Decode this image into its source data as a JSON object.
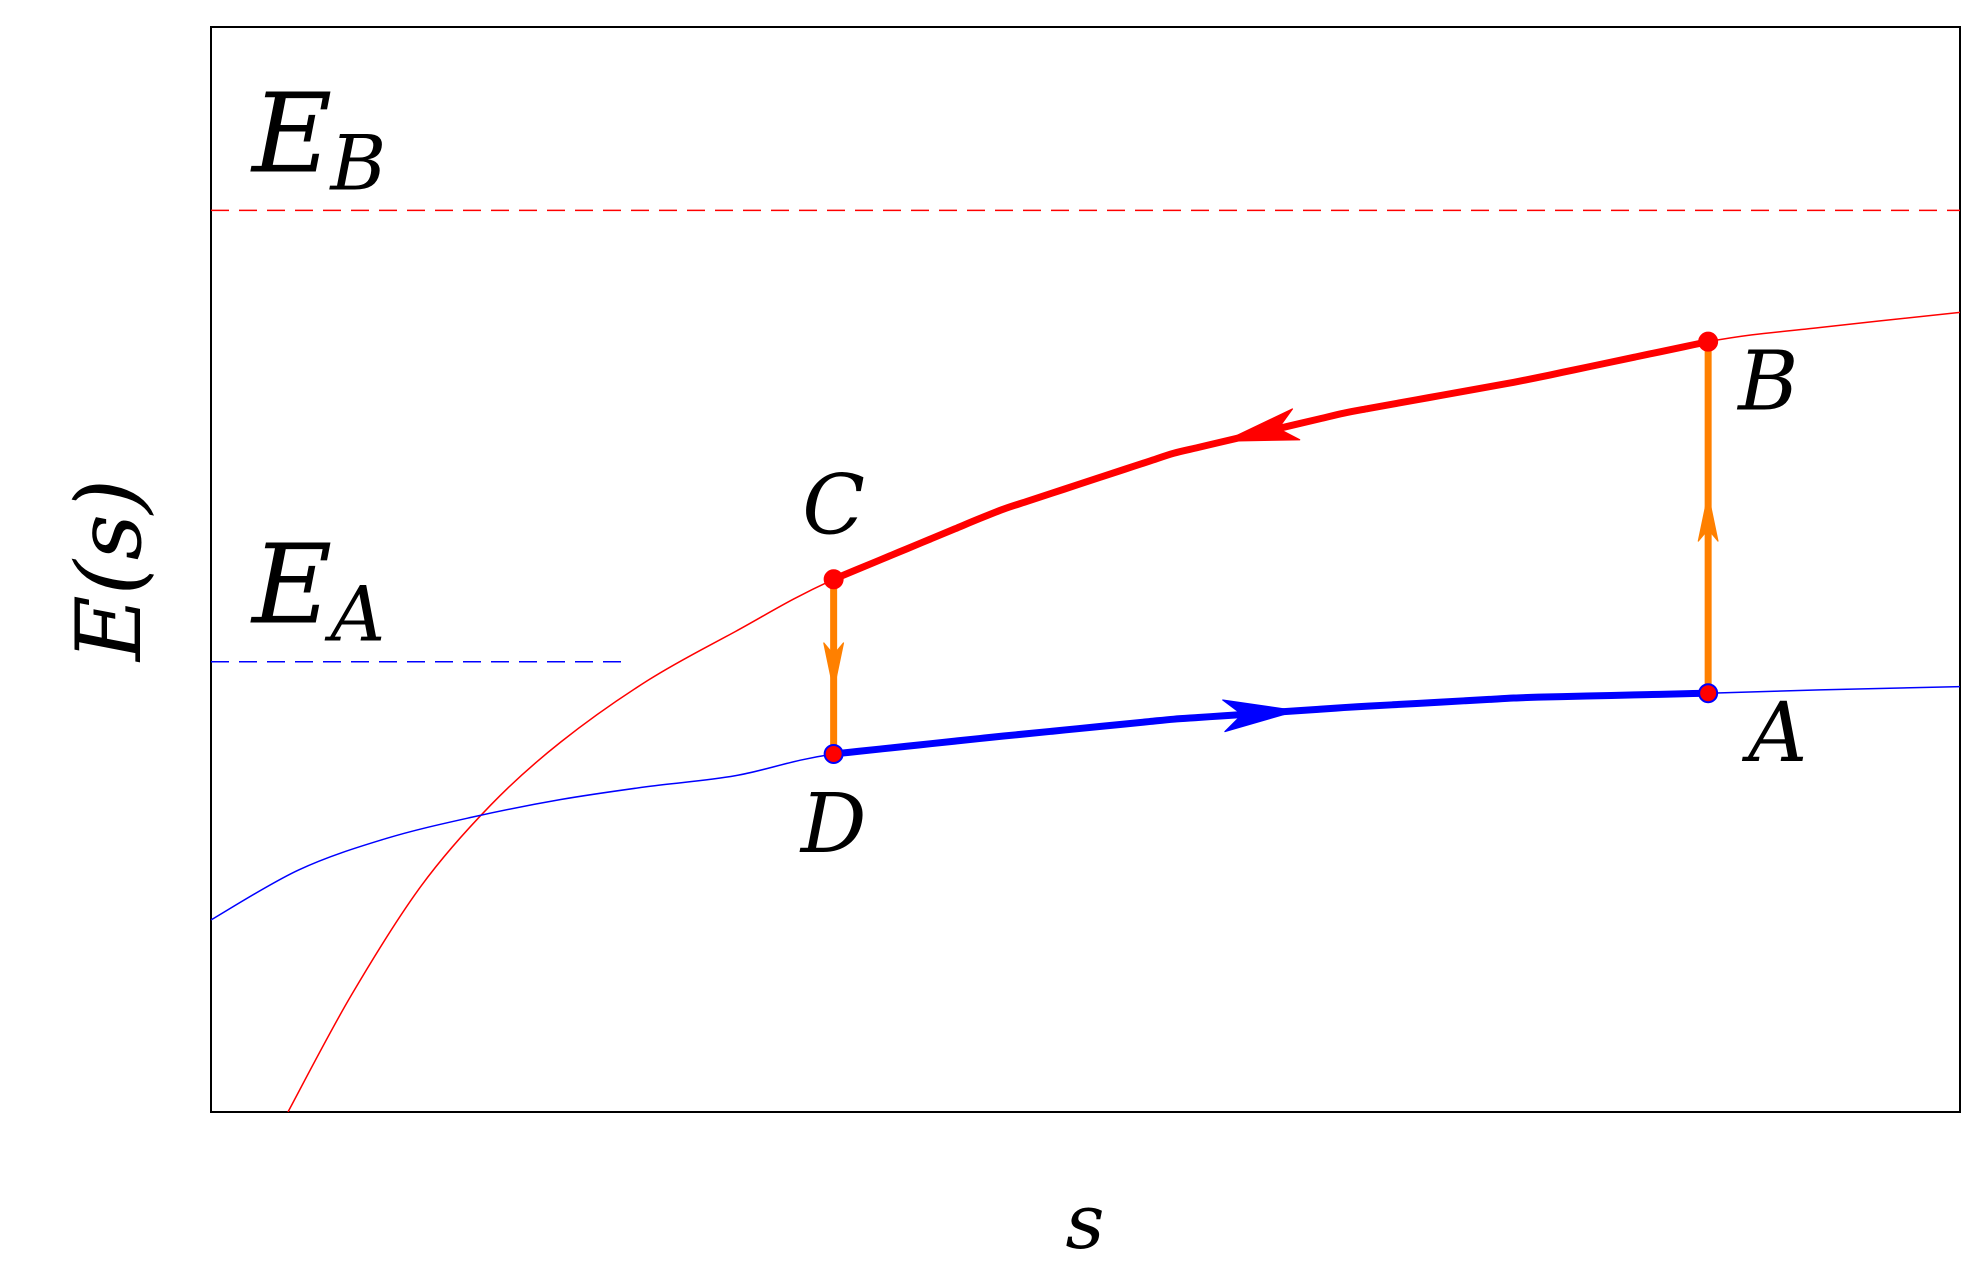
{
  "chart_data": {
    "type": "line",
    "title": "",
    "xlabel": "s",
    "ylabel": "E(s)",
    "xlim": [
      0,
      1
    ],
    "ylim": [
      0,
      1
    ],
    "grid": false,
    "legend": "none",
    "series": [
      {
        "name": "",
        "color": "#ff0000",
        "x": [
          0.044,
          0.08,
          0.12,
          0.16,
          0.2,
          0.25,
          0.3,
          0.356,
          0.45,
          0.55,
          0.65,
          0.75,
          0.856,
          0.92,
          1.0
        ],
        "y": [
          0.0,
          0.107,
          0.208,
          0.283,
          0.341,
          0.398,
          0.443,
          0.491,
          0.554,
          0.607,
          0.645,
          0.674,
          0.71,
          0.723,
          0.737
        ]
      },
      {
        "name": "",
        "color": "#0000ff",
        "x": [
          0.0,
          0.05,
          0.1,
          0.15,
          0.2,
          0.25,
          0.3,
          0.356,
          0.45,
          0.55,
          0.65,
          0.75,
          0.856,
          0.92,
          1.0
        ],
        "y": [
          0.177,
          0.223,
          0.252,
          0.272,
          0.288,
          0.3,
          0.31,
          0.33,
          0.346,
          0.362,
          0.373,
          0.382,
          0.386,
          0.389,
          0.392
        ]
      }
    ],
    "hlines": [
      {
        "label_base": "E",
        "label_sub": "B",
        "y": 0.831,
        "color": "#ff0000",
        "dashed": true,
        "x": [
          0,
          1
        ]
      },
      {
        "label_base": "E",
        "label_sub": "A",
        "y": 0.415,
        "color": "#0000ff",
        "dashed": true,
        "x": [
          0,
          0.239
        ]
      }
    ],
    "cycle": {
      "points": [
        {
          "name": "A",
          "x": 0.856,
          "y": 0.386
        },
        {
          "name": "B",
          "x": 0.856,
          "y": 0.71
        },
        {
          "name": "C",
          "x": 0.356,
          "y": 0.491
        },
        {
          "name": "D",
          "x": 0.356,
          "y": 0.33
        }
      ],
      "orange_color": "#ff8000",
      "red_color": "#ff0000",
      "blue_color": "#0000ff"
    }
  }
}
